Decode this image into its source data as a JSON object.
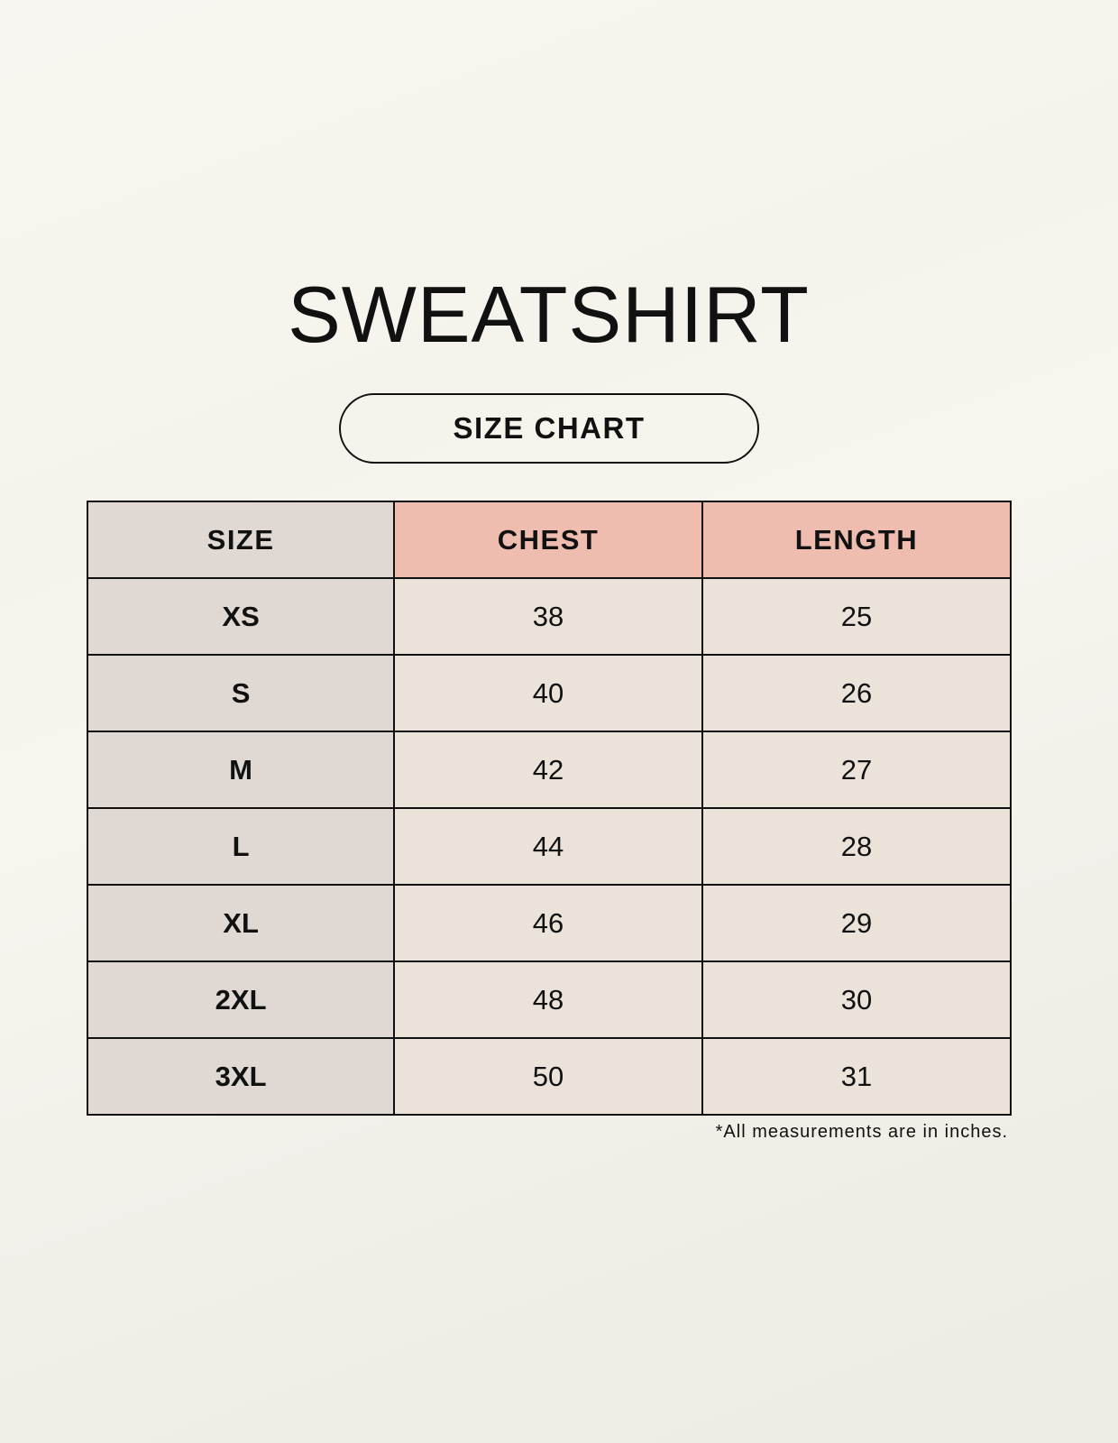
{
  "title": "SWEATSHIRT",
  "subtitle": "SIZE CHART",
  "table": {
    "headers": [
      "SIZE",
      "CHEST",
      "LENGTH"
    ],
    "rows": [
      [
        "XS",
        "38",
        "25"
      ],
      [
        "S",
        "40",
        "26"
      ],
      [
        "M",
        "42",
        "27"
      ],
      [
        "L",
        "44",
        "28"
      ],
      [
        "XL",
        "46",
        "29"
      ],
      [
        "2XL",
        "48",
        "30"
      ],
      [
        "3XL",
        "50",
        "31"
      ]
    ]
  },
  "note": "*All measurements are in inches.",
  "colors": {
    "size_column": "#e0d9d3",
    "header_accent": "#eebdaf",
    "value_cells": "#ebe3d9"
  }
}
